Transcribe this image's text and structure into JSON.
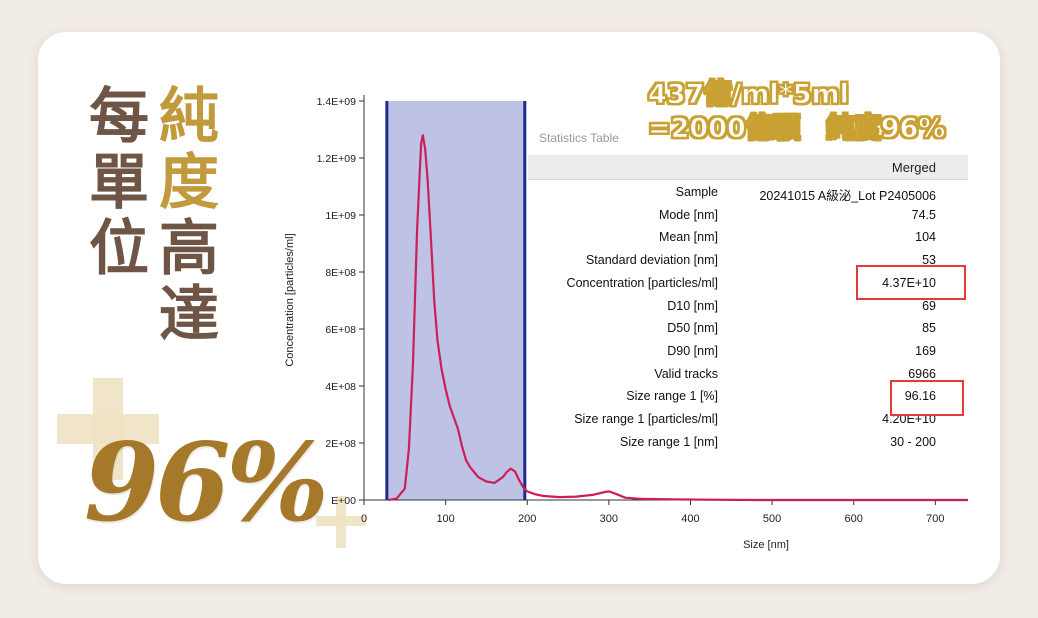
{
  "headline": {
    "col1": [
      "每",
      "單",
      "位"
    ],
    "col2_gold": [
      "純",
      "度"
    ],
    "col2_dark": [
      "高",
      "達"
    ],
    "big_percent": "96%"
  },
  "callout": {
    "line1": "437億/ml*5ml",
    "line2": "=2000億顆　純度96%"
  },
  "colors": {
    "gold": "#c19a3d",
    "brown": "#6e5545",
    "curve": "#cc1f55",
    "band_fill": "#b7bbe2",
    "band_edge": "#1f2a8f",
    "highlight": "#e53a3a"
  },
  "stats_table": {
    "title": "Statistics Table",
    "column": "Merged",
    "rows": [
      {
        "label": "Sample",
        "value": "20241015 A級泌_Lot P2405006"
      },
      {
        "label": "Mode [nm]",
        "value": "74.5"
      },
      {
        "label": "Mean [nm]",
        "value": "104"
      },
      {
        "label": "Standard deviation [nm]",
        "value": "53"
      },
      {
        "label": "Concentration [particles/ml]",
        "value": "4.37E+10"
      },
      {
        "label": "D10 [nm]",
        "value": "69"
      },
      {
        "label": "D50 [nm]",
        "value": "85"
      },
      {
        "label": "D90 [nm]",
        "value": "169"
      },
      {
        "label": "Valid tracks",
        "value": "6966"
      },
      {
        "label": "Size range 1 [%]",
        "value": "96.16"
      },
      {
        "label": "Size range 1 [particles/ml]",
        "value": "4.20E+10"
      },
      {
        "label": "Size range 1 [nm]",
        "value": "30 - 200"
      }
    ]
  },
  "chart_data": {
    "type": "line",
    "xlabel": "Size [nm]",
    "ylabel": "Concentration [particles/ml]",
    "xlim": [
      0,
      740
    ],
    "ylim": [
      0,
      1400000000
    ],
    "x_ticks": [
      0,
      100,
      200,
      300,
      400,
      500,
      600,
      700
    ],
    "x_tick_labels": [
      "0",
      "100",
      "200",
      "300",
      "400",
      "500",
      "600",
      "700"
    ],
    "y_ticks": [
      0,
      200000000,
      400000000,
      600000000,
      800000000,
      1000000000,
      1200000000,
      1400000000
    ],
    "y_tick_labels": [
      "E+00",
      "2E+08",
      "4E+08",
      "6E+08",
      "8E+08",
      "1E+09",
      "1.2E+09",
      "1.4E+09"
    ],
    "size_range_band": [
      28,
      197
    ],
    "series": [
      {
        "x": [
          30,
          40,
          50,
          55,
          60,
          65,
          70,
          72,
          75,
          78,
          82,
          86,
          90,
          95,
          100,
          105,
          110,
          115,
          120,
          125,
          130,
          140,
          150,
          160,
          170,
          175,
          180,
          185,
          190,
          195,
          200,
          210,
          220,
          240,
          260,
          280,
          295,
          300,
          310,
          320,
          340,
          380,
          420,
          480,
          550,
          620,
          700,
          740
        ],
        "y": [
          0,
          5000000,
          40000000,
          180000000,
          480000000,
          950000000,
          1250000000,
          1280000000,
          1230000000,
          1120000000,
          920000000,
          700000000,
          560000000,
          460000000,
          390000000,
          330000000,
          290000000,
          250000000,
          190000000,
          140000000,
          115000000,
          80000000,
          65000000,
          60000000,
          80000000,
          98000000,
          110000000,
          100000000,
          70000000,
          45000000,
          30000000,
          20000000,
          14000000,
          10000000,
          12000000,
          18000000,
          28000000,
          30000000,
          20000000,
          8000000,
          4000000,
          2000000,
          1000000,
          0,
          0,
          0,
          0,
          0
        ]
      }
    ]
  }
}
